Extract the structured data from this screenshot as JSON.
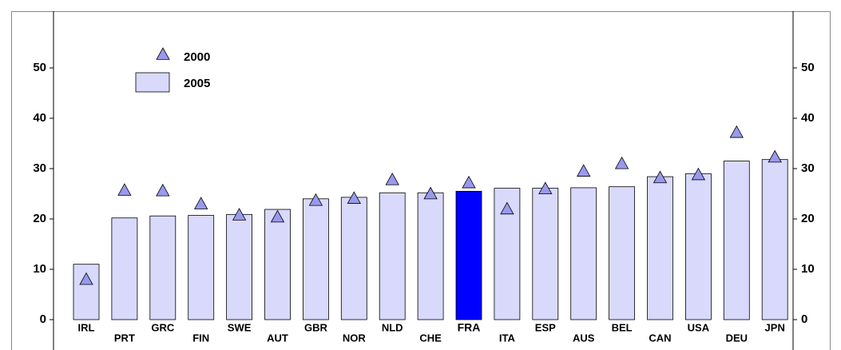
{
  "chart_data": {
    "type": "bar",
    "categories": [
      "IRL",
      "PRT",
      "GRC",
      "FIN",
      "SWE",
      "AUT",
      "GBR",
      "NOR",
      "NLD",
      "CHE",
      "FRA",
      "ITA",
      "ESP",
      "AUS",
      "BEL",
      "CAN",
      "USA",
      "DEU",
      "JPN"
    ],
    "series": [
      {
        "name": "2000",
        "type": "scatter",
        "marker": "triangle",
        "color": "#9999ee",
        "values": [
          8,
          25.7,
          25.6,
          23,
          20.8,
          20.4,
          23.7,
          24.1,
          27.8,
          25,
          27.2,
          22,
          26,
          29.5,
          31,
          28.2,
          28.8,
          37.2,
          32.3
        ]
      },
      {
        "name": "2005",
        "type": "bar",
        "color": "#d9d9fb",
        "values": [
          11,
          20.2,
          20.6,
          20.7,
          20.9,
          21.9,
          24,
          24.3,
          25.2,
          25.2,
          25.5,
          26.1,
          26.1,
          26.2,
          26.4,
          28.4,
          29,
          31.5,
          31.8
        ]
      }
    ],
    "highlight": "FRA",
    "highlight_color": "#0000ff",
    "ylim": [
      0,
      50
    ],
    "yticks": [
      0,
      10,
      20,
      30,
      40,
      50
    ],
    "legend": "top-left"
  }
}
